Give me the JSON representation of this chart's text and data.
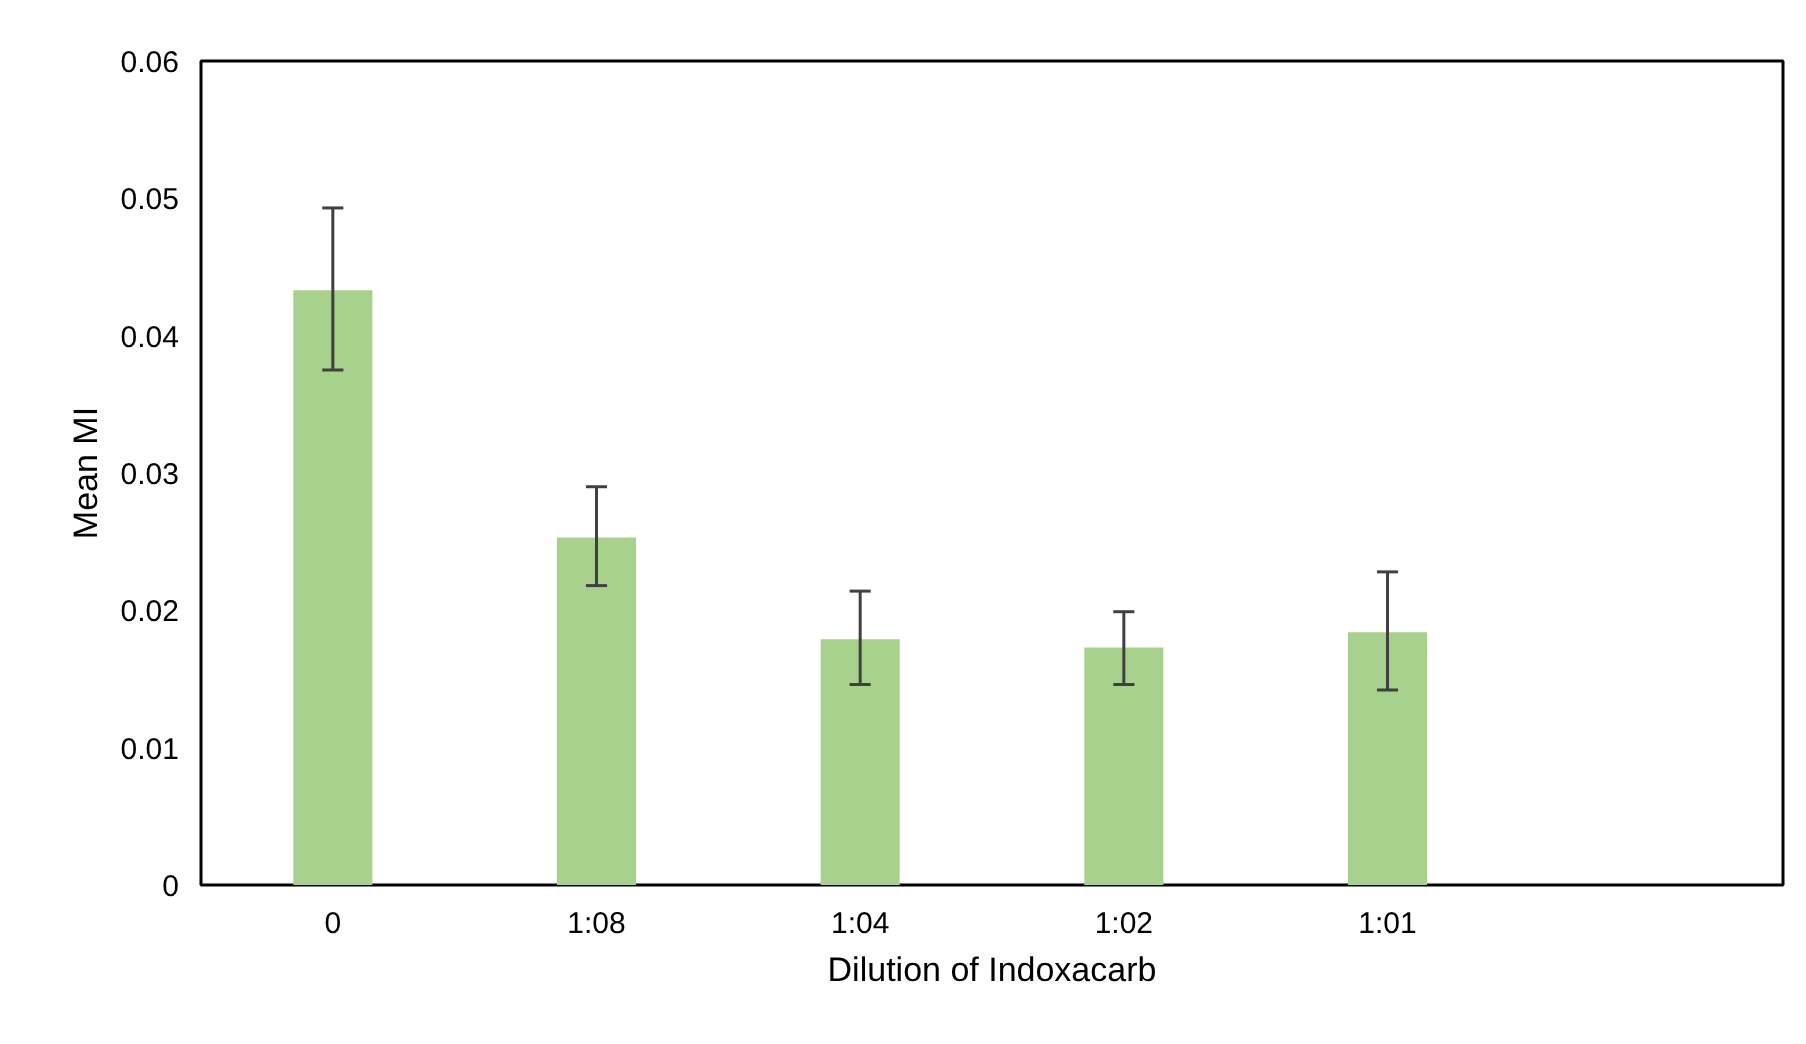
{
  "chart_data": {
    "type": "bar",
    "xlabel": "Dilution of Indoxacarb",
    "ylabel": "Mean MI",
    "categories": [
      "0",
      "1:08",
      "1:04",
      "1:02",
      "1:01",
      null
    ],
    "values": [
      0.0433,
      0.0253,
      0.0179,
      0.0173,
      0.0184,
      null
    ],
    "errors": [
      [
        0.0375,
        0.0493
      ],
      [
        0.0218,
        0.029
      ],
      [
        0.0146,
        0.0214
      ],
      [
        0.0146,
        0.0199
      ],
      [
        0.0142,
        0.0228
      ],
      null
    ],
    "color": "#a9d18e",
    "ylim": [
      0,
      0.06
    ],
    "yticks": [
      0,
      0.01,
      0.02,
      0.03,
      0.04,
      0.05,
      0.06
    ],
    "grid": false
  }
}
